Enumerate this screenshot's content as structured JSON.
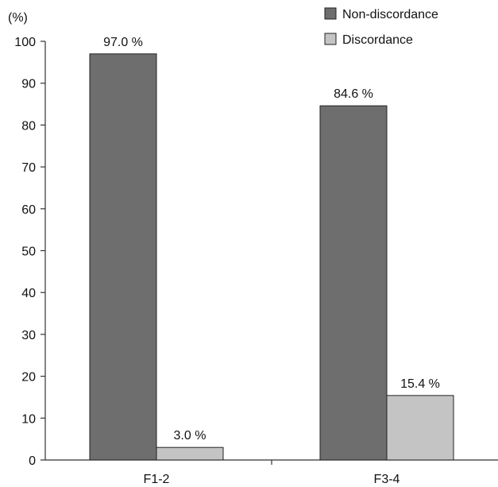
{
  "chart_data": {
    "type": "bar",
    "categories": [
      "F1-2",
      "F3-4"
    ],
    "series": [
      {
        "name": "Non-discordance",
        "values": [
          97.0,
          84.6
        ],
        "labels": [
          "97.0 %",
          "84.6 %"
        ],
        "color": "#6e6e6e"
      },
      {
        "name": "Discordance",
        "values": [
          3.0,
          15.4
        ],
        "labels": [
          "3.0 %",
          "15.4 %"
        ],
        "color": "#c4c4c4"
      }
    ],
    "y_unit_label": "(%)",
    "ylim": [
      0,
      100
    ],
    "yticks": [
      0,
      10,
      20,
      30,
      40,
      50,
      60,
      70,
      80,
      90,
      100
    ],
    "grid": false,
    "legend_position": "top-right"
  }
}
